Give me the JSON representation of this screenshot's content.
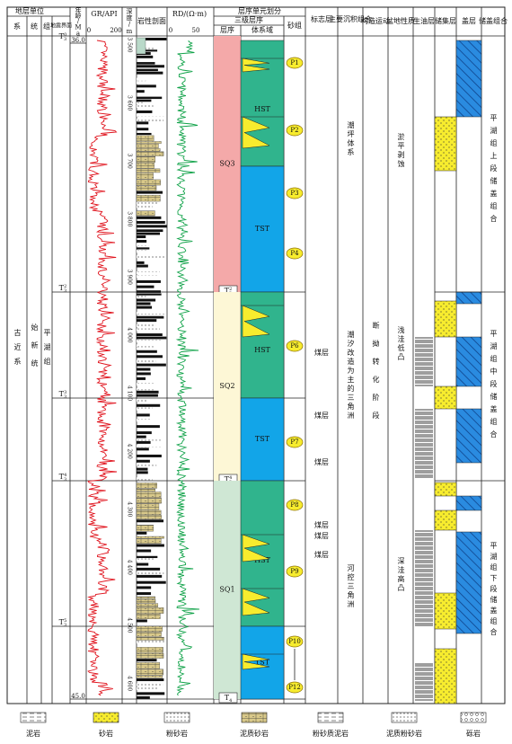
{
  "header": {
    "strat_unit": "地层单位",
    "system": "系",
    "series": "统",
    "formation": "组",
    "seismic": "地震界面",
    "age": "年龄/Ma",
    "gr": "GR/API",
    "gr_min": "0",
    "gr_max": "200",
    "depth": "深度/m",
    "lithology": "岩性剖面",
    "rd": "RD/(Ω·m)",
    "rd_min": "0",
    "rd_max": "50",
    "seq_division": "层序单元划分",
    "third_order": "三级层序",
    "sequence": "层序",
    "systems_tract": "体系域",
    "sand_group": "砂组",
    "marker": "标志层",
    "deposition": "主要沉积组合",
    "tectonic": "构造运动",
    "basin": "盆地性质",
    "source": "生油层",
    "reservoir": "储集层",
    "seal": "盖层",
    "combo": "储盖组合"
  },
  "strat": {
    "system": "古近系",
    "series": "始新统",
    "formation": "平湖组"
  },
  "ages": [
    "36.0",
    "45.0"
  ],
  "surfaces": [
    {
      "name": "T",
      "sub": "3",
      "sup": "0"
    },
    {
      "name": "T",
      "sub": "3",
      "sup": "2"
    },
    {
      "name": "T",
      "sub": "3",
      "sup": "3"
    },
    {
      "name": "T",
      "sub": "3",
      "sup": "4"
    },
    {
      "name": "T",
      "sub": "3",
      "sup": "5"
    }
  ],
  "depths": [
    "3 500",
    "3 600",
    "3 700",
    "3 800",
    "3 900",
    "4 000",
    "4 100",
    "4 200",
    "4 300",
    "4 400",
    "4 500",
    "4 600"
  ],
  "sequences": [
    {
      "name": "SQ3",
      "base": {
        "name": "T",
        "sub": "3",
        "sup": "2"
      }
    },
    {
      "name": "SQ2",
      "base": {
        "name": "T",
        "sub": "3",
        "sup": "4"
      }
    },
    {
      "name": "SQ1",
      "base": {
        "name": "T",
        "sub": "4"
      }
    }
  ],
  "tracts": [
    "HST",
    "TST",
    "HST",
    "TST",
    "HST",
    "TST"
  ],
  "sands": [
    "P1",
    "P2",
    "P3",
    "P4",
    "P6",
    "P7",
    "P8",
    "P9",
    "P10",
    "P12"
  ],
  "markers": [
    "煤层",
    "煤层",
    "煤层",
    "煤层",
    "煤层",
    "煤层"
  ],
  "deposition": [
    "潮坪体系",
    "潮汐改造为主的三角洲",
    "河控三角洲"
  ],
  "tectonic": "断拗转化阶段",
  "basin": [
    "淤平剥蚀",
    "浅洼低凸",
    "深洼高凸"
  ],
  "combos": [
    "平湖组上段储盖组合",
    "平湖组中段储盖组合",
    "平湖组下段储盖组合"
  ],
  "legend": [
    "泥岩",
    "砂岩",
    "粉砂岩",
    "泥质砂岩",
    "粉砂质泥岩",
    "泥质粉砂岩",
    "砾岩"
  ]
}
